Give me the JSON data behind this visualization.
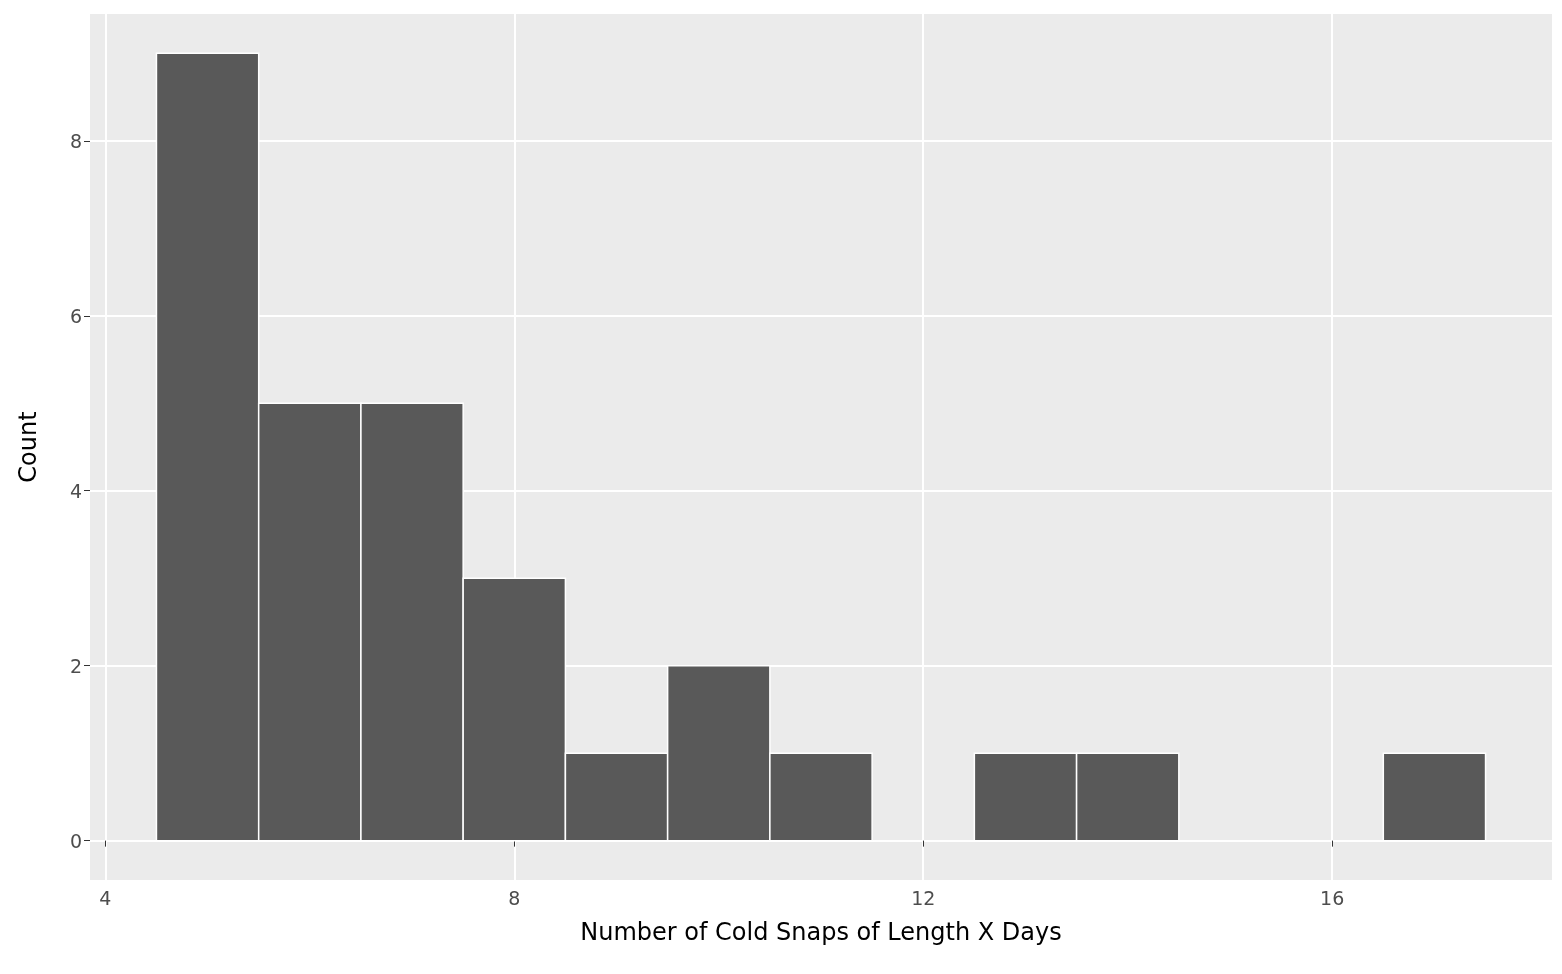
{
  "chart_data": {
    "type": "histogram",
    "xlabel": "Number of Cold Snaps of Length X Days",
    "ylabel": "Count",
    "bins": [
      4.5,
      5.5,
      6.5,
      7.5,
      8.5,
      9.5,
      10.5,
      11.5,
      12.5,
      13.5,
      14.5,
      15.5,
      16.5,
      17.5
    ],
    "values": [
      9,
      5,
      5,
      3,
      1,
      2,
      1,
      0,
      1,
      1,
      0,
      0,
      1
    ],
    "color": "#595959",
    "xlim": [
      3.85,
      18.15
    ],
    "xticks": [
      4,
      8,
      12,
      16
    ],
    "ylim": [
      -0.45,
      9.45
    ],
    "yticks": [
      0,
      2,
      4,
      6,
      8
    ],
    "grid": true
  }
}
